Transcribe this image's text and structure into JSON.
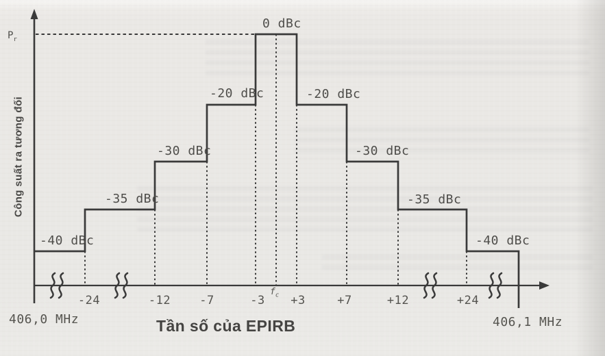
{
  "figure": {
    "pr_base": "P",
    "pr_sub": "r",
    "y_axis_title": "Công suất ra tương đối",
    "x_axis_title": "Tần số của EPIRB",
    "freq_left": "406,0 MHz",
    "freq_right": "406,1 MHz",
    "fc_base": "f",
    "fc_sub": "c",
    "levels": {
      "peak": "0 dBc",
      "l20": "-20 dBc",
      "r20": "-20 dBc",
      "l30": "-30 dBc",
      "r30": "-30 dBc",
      "l35": "-35 dBc",
      "r35": "-35 dBc",
      "l40": "-40 dBc",
      "r40": "-40 dBc"
    },
    "ticks": [
      "-24",
      "-12",
      "-7",
      "-3",
      "+3",
      "+7",
      "+12",
      "+24"
    ]
  },
  "chart_data": {
    "type": "line",
    "subtype": "step-spectral-mask",
    "title": "",
    "xlabel": "Tần số của EPIRB",
    "ylabel": "Công suất ra tương đối",
    "y_unit": "dBc",
    "y_reference_label": "Pr",
    "x_tick_labels": [
      "-24",
      "-12",
      "-7",
      "-3",
      "fc",
      "+3",
      "+7",
      "+12",
      "+24"
    ],
    "x_range_labels": [
      "406,0 MHz",
      "406,1 MHz"
    ],
    "segments": [
      {
        "from": "406,0 MHz edge",
        "to": "-24",
        "level_dBc": -40
      },
      {
        "from": "-24",
        "to": "-12",
        "level_dBc": -35
      },
      {
        "from": "-12",
        "to": "-7",
        "level_dBc": -30
      },
      {
        "from": "-7",
        "to": "-3",
        "level_dBc": -20
      },
      {
        "from": "-3",
        "to": "+3",
        "level_dBc": 0
      },
      {
        "from": "+3",
        "to": "+7",
        "level_dBc": -20
      },
      {
        "from": "+7",
        "to": "+12",
        "level_dBc": -30
      },
      {
        "from": "+12",
        "to": "+24",
        "level_dBc": -35
      },
      {
        "from": "+24",
        "to": "406,1 MHz edge",
        "level_dBc": -40
      }
    ],
    "annotations": [
      "0 dBc",
      "-20 dBc",
      "-20 dBc",
      "-30 dBc",
      "-30 dBc",
      "-35 dBc",
      "-35 dBc",
      "-40 dBc",
      "-40 dBc"
    ],
    "axis_breaks": [
      "left of -24",
      "between -24 and -12",
      "between +12 and +24",
      "right of +24"
    ],
    "grid": false,
    "legend": false,
    "colors": {
      "line": "#3a3a3a",
      "background": "#e9e8e5",
      "text": "#4e4d4a"
    }
  }
}
